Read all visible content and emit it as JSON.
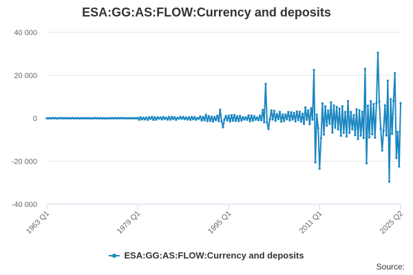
{
  "chart_data": {
    "type": "line",
    "title": "ESA:GG:AS:FLOW:Currency and deposits",
    "xlabel": "",
    "ylabel": "",
    "ylim": [
      -40000,
      40000
    ],
    "yticks": [
      40000,
      20000,
      0,
      -20000,
      -40000
    ],
    "ytick_labels": [
      "40 000",
      "20 000",
      "0",
      "-20 000",
      "-40 000"
    ],
    "xlim": [
      "1963 Q1",
      "2025 Q2"
    ],
    "xtick_labels": [
      "1963 Q1",
      "1979 Q1",
      "1995 Q1",
      "2011 Q1",
      "2025 Q2"
    ],
    "grid": "horizontal",
    "legend_position": "bottom",
    "series": [
      {
        "name": "ESA:GG:AS:FLOW:Currency and deposits",
        "color": "#1a86c1",
        "note": "quarterly; ~0 until 1979, small oscillation 1979-1995, growing volatility after 2000, large swings 2010-2025",
        "anchor_points": [
          {
            "x": "1963 Q1",
            "y": 0
          },
          {
            "x": "1979 Q1",
            "y": 200
          },
          {
            "x": "1993 Q3",
            "y": 4000
          },
          {
            "x": "1994 Q1",
            "y": -4200
          },
          {
            "x": "2001 Q3",
            "y": 16000
          },
          {
            "x": "2002 Q1",
            "y": -5000
          },
          {
            "x": "2010 Q1",
            "y": 22500
          },
          {
            "x": "2010 Q2",
            "y": -20500
          },
          {
            "x": "2011 Q1",
            "y": -23500
          },
          {
            "x": "2019 Q1",
            "y": 23000
          },
          {
            "x": "2019 Q2",
            "y": -21000
          },
          {
            "x": "2021 Q2",
            "y": 30500
          },
          {
            "x": "2022 Q1",
            "y": -15000
          },
          {
            "x": "2023 Q1",
            "y": 17500
          },
          {
            "x": "2023 Q2",
            "y": -29500
          },
          {
            "x": "2024 Q2",
            "y": 21000
          },
          {
            "x": "2024 Q3",
            "y": -18500
          },
          {
            "x": "2025 Q1",
            "y": -22500
          },
          {
            "x": "2025 Q2",
            "y": 7000
          }
        ]
      }
    ]
  },
  "source_label": "Source:"
}
